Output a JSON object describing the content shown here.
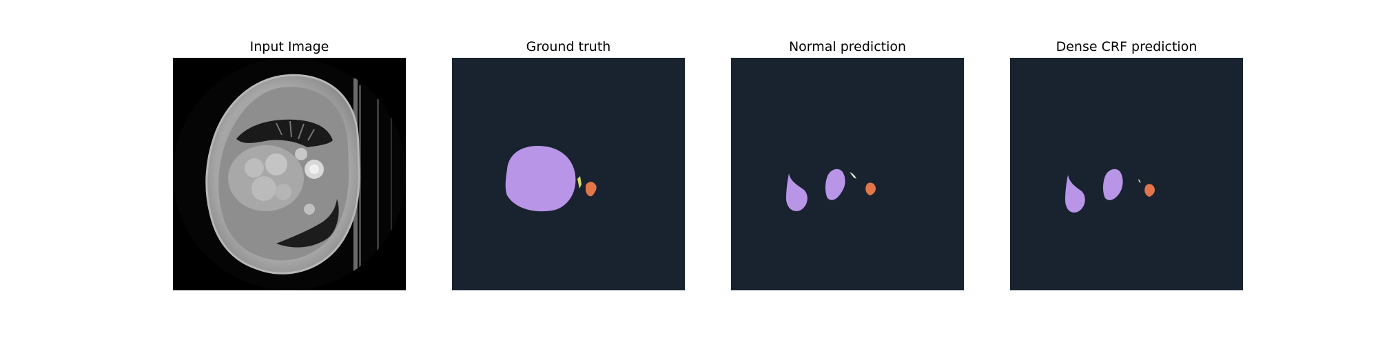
{
  "figure": {
    "panels": [
      {
        "title": "Input Image"
      },
      {
        "title": "Ground truth"
      },
      {
        "title": "Normal prediction"
      },
      {
        "title": "Dense CRF prediction"
      }
    ]
  },
  "colors": {
    "background": "#ffffff",
    "mask_background": "#18232f",
    "class_purple": "#b995e8",
    "class_orange": "#e2764a",
    "class_yellow": "#d9d96a",
    "class_light": "#dde8d0",
    "ct_black": "#000000"
  }
}
